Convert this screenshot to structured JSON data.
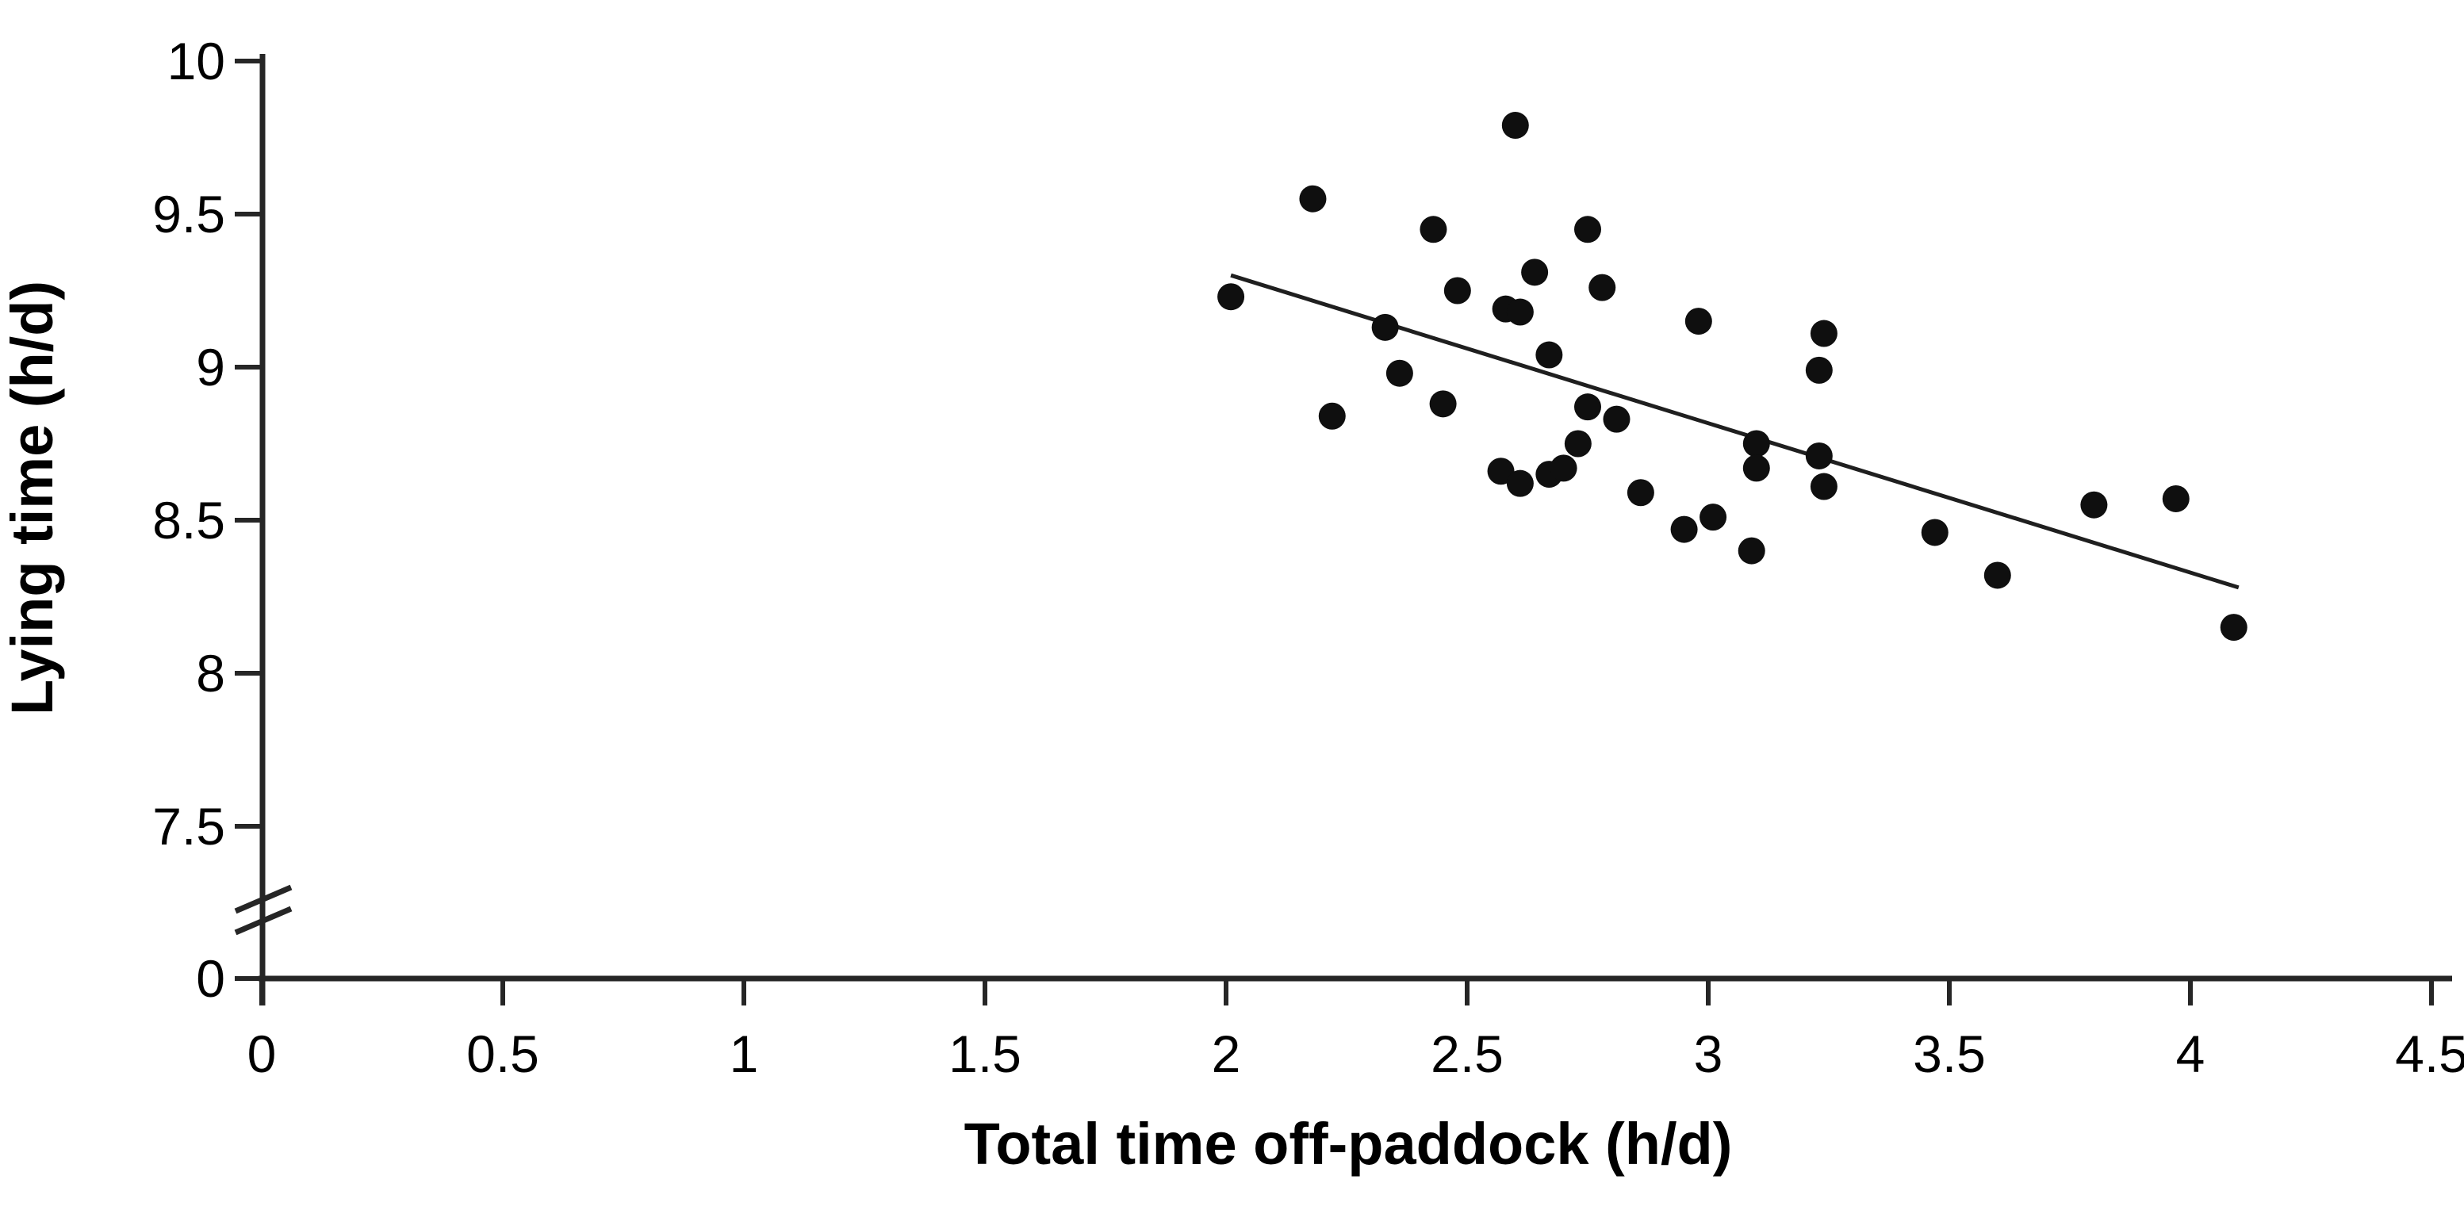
{
  "chart_data": {
    "type": "scatter",
    "title": "",
    "xlabel": "Total time off-paddock (h/d)",
    "ylabel": "Lying time (h/d)",
    "xlim": [
      0,
      4.5
    ],
    "ylim_upper_segment": [
      7.5,
      10
    ],
    "y_axis_break": true,
    "break_between": [
      0,
      7.5
    ],
    "grid": false,
    "legend": "none",
    "x_ticks": [
      {
        "value": 0,
        "label": "0"
      },
      {
        "value": 0.5,
        "label": "0.5"
      },
      {
        "value": 1,
        "label": "1"
      },
      {
        "value": 1.5,
        "label": "1.5"
      },
      {
        "value": 2,
        "label": "2"
      },
      {
        "value": 2.5,
        "label": "2.5"
      },
      {
        "value": 3,
        "label": "3"
      },
      {
        "value": 3.5,
        "label": "3.5"
      },
      {
        "value": 4,
        "label": "4"
      },
      {
        "value": 4.5,
        "label": "4.5"
      }
    ],
    "y_ticks": [
      {
        "value": 10,
        "label": "10"
      },
      {
        "value": 9.5,
        "label": "9.5"
      },
      {
        "value": 9,
        "label": "9"
      },
      {
        "value": 8.5,
        "label": "8.5"
      },
      {
        "value": 8,
        "label": "8"
      },
      {
        "value": 7.5,
        "label": "7.5"
      },
      {
        "value": 0,
        "label": "0"
      }
    ],
    "points": [
      [
        2.01,
        9.23
      ],
      [
        2.18,
        9.55
      ],
      [
        2.22,
        8.84
      ],
      [
        2.33,
        9.13
      ],
      [
        2.36,
        8.98
      ],
      [
        2.43,
        9.45
      ],
      [
        2.45,
        8.88
      ],
      [
        2.48,
        9.25
      ],
      [
        2.57,
        8.66
      ],
      [
        2.58,
        9.19
      ],
      [
        2.6,
        9.79
      ],
      [
        2.61,
        9.18
      ],
      [
        2.61,
        8.62
      ],
      [
        2.64,
        9.31
      ],
      [
        2.67,
        9.04
      ],
      [
        2.67,
        8.65
      ],
      [
        2.7,
        8.67
      ],
      [
        2.73,
        8.75
      ],
      [
        2.75,
        9.45
      ],
      [
        2.75,
        8.87
      ],
      [
        2.78,
        9.26
      ],
      [
        2.81,
        8.83
      ],
      [
        2.86,
        8.59
      ],
      [
        2.95,
        8.47
      ],
      [
        2.98,
        9.15
      ],
      [
        3.01,
        8.51
      ],
      [
        3.09,
        8.4
      ],
      [
        3.1,
        8.75
      ],
      [
        3.1,
        8.67
      ],
      [
        3.23,
        8.99
      ],
      [
        3.23,
        8.71
      ],
      [
        3.24,
        9.11
      ],
      [
        3.24,
        8.61
      ],
      [
        3.47,
        8.46
      ],
      [
        3.6,
        8.32
      ],
      [
        3.8,
        8.55
      ],
      [
        3.97,
        8.57
      ],
      [
        4.09,
        8.15
      ]
    ],
    "trend_line": {
      "x1": 2.01,
      "y1": 9.3,
      "x2": 4.1,
      "y2": 8.28
    },
    "marker": {
      "shape": "circle",
      "color": "#0f0f0f"
    },
    "colors": {
      "background": "#ffffff",
      "axis": "#262626",
      "text": "#000000",
      "trend_line": "#1f1f1f"
    }
  }
}
